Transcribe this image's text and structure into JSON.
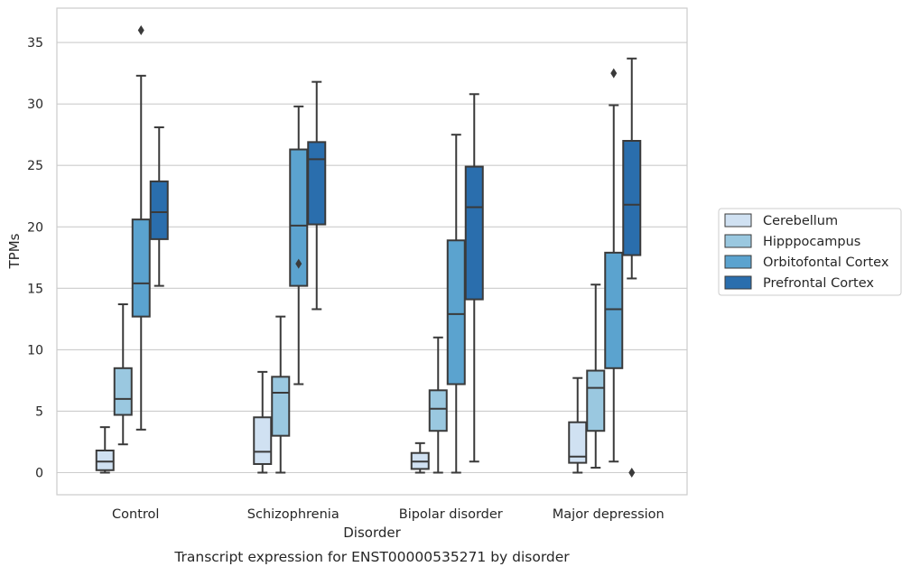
{
  "chart_data": {
    "type": "box",
    "title": "Transcript expression for ENST00000535271 by disorder",
    "xlabel": "Disorder",
    "ylabel": "TPMs",
    "ylim": [
      -1.8,
      37.8
    ],
    "yticks": [
      0,
      5,
      10,
      15,
      20,
      25,
      30,
      35
    ],
    "grid": "horizontal",
    "legend_position": "right",
    "categories": [
      "Control",
      "Schizophrenia",
      "Bipolar disorder",
      "Major depression"
    ],
    "series": [
      {
        "name": "Cerebellum",
        "color": "#d0e1f2",
        "boxes": [
          {
            "whisker_low": 0.0,
            "q1": 0.2,
            "median": 0.9,
            "q3": 1.8,
            "whisker_high": 3.7,
            "outliers": []
          },
          {
            "whisker_low": 0.0,
            "q1": 0.7,
            "median": 1.7,
            "q3": 4.5,
            "whisker_high": 8.2,
            "outliers": []
          },
          {
            "whisker_low": 0.0,
            "q1": 0.3,
            "median": 0.9,
            "q3": 1.6,
            "whisker_high": 2.4,
            "outliers": []
          },
          {
            "whisker_low": 0.0,
            "q1": 0.8,
            "median": 1.3,
            "q3": 4.1,
            "whisker_high": 7.7,
            "outliers": []
          }
        ]
      },
      {
        "name": "Hipppocampus",
        "color": "#9ac8e0",
        "boxes": [
          {
            "whisker_low": 2.3,
            "q1": 4.7,
            "median": 6.0,
            "q3": 8.5,
            "whisker_high": 13.7,
            "outliers": []
          },
          {
            "whisker_low": 0.0,
            "q1": 3.0,
            "median": 6.5,
            "q3": 7.8,
            "whisker_high": 12.7,
            "outliers": []
          },
          {
            "whisker_low": 0.0,
            "q1": 3.4,
            "median": 5.2,
            "q3": 6.7,
            "whisker_high": 11.0,
            "outliers": []
          },
          {
            "whisker_low": 0.4,
            "q1": 3.4,
            "median": 6.9,
            "q3": 8.3,
            "whisker_high": 15.3,
            "outliers": []
          }
        ]
      },
      {
        "name": "Orbitofontal Cortex",
        "color": "#5ba3cf",
        "boxes": [
          {
            "whisker_low": 3.5,
            "q1": 12.7,
            "median": 15.4,
            "q3": 20.6,
            "whisker_high": 32.3,
            "outliers": [
              36.0
            ]
          },
          {
            "whisker_low": 7.2,
            "q1": 15.2,
            "median": 20.1,
            "q3": 26.3,
            "whisker_high": 29.8,
            "outliers": [
              17.0
            ]
          },
          {
            "whisker_low": 0.0,
            "q1": 7.2,
            "median": 12.9,
            "q3": 18.9,
            "whisker_high": 27.5,
            "outliers": []
          },
          {
            "whisker_low": 0.9,
            "q1": 8.5,
            "median": 13.3,
            "q3": 17.9,
            "whisker_high": 29.9,
            "outliers": [
              32.5
            ]
          }
        ]
      },
      {
        "name": "Prefrontal Cortex",
        "color": "#2a6ead",
        "boxes": [
          {
            "whisker_low": 15.2,
            "q1": 19.0,
            "median": 21.2,
            "q3": 23.7,
            "whisker_high": 28.1,
            "outliers": []
          },
          {
            "whisker_low": 13.3,
            "q1": 20.2,
            "median": 25.5,
            "q3": 26.9,
            "whisker_high": 31.8,
            "outliers": []
          },
          {
            "whisker_low": 0.9,
            "q1": 14.1,
            "median": 21.6,
            "q3": 24.9,
            "whisker_high": 30.8,
            "outliers": []
          },
          {
            "whisker_low": 15.8,
            "q1": 17.7,
            "median": 21.8,
            "q3": 27.0,
            "whisker_high": 33.7,
            "outliers": [
              0.0
            ]
          }
        ]
      }
    ]
  }
}
